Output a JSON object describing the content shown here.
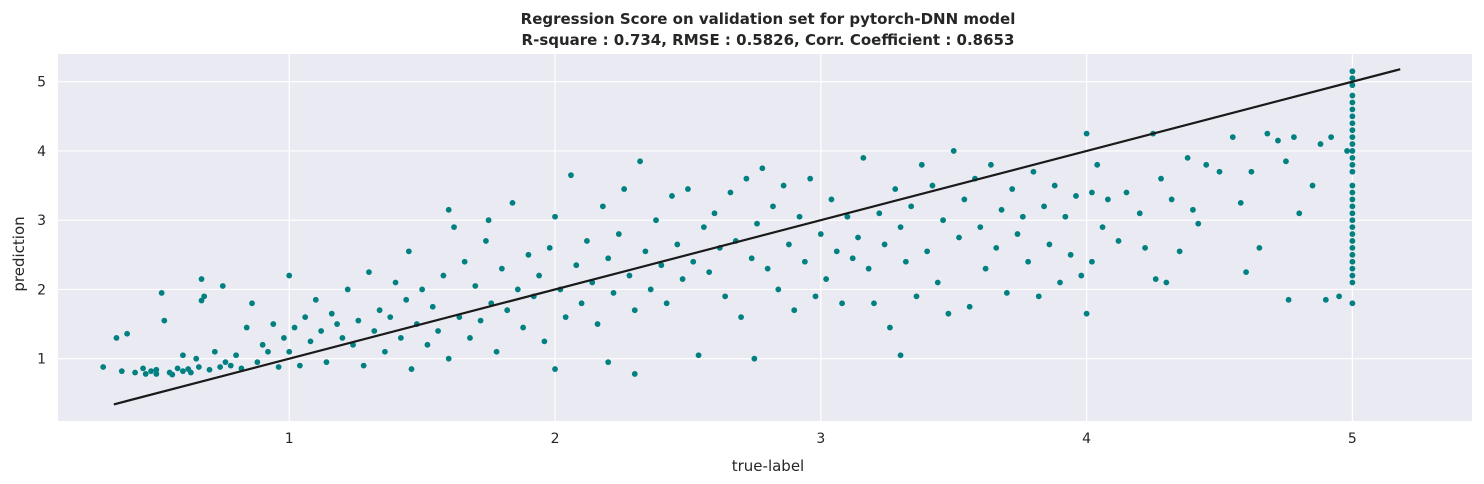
{
  "chart_data": {
    "type": "scatter",
    "title": "Regression Score on validation set for pytorch-DNN model",
    "subtitle": "R-square : 0.734,   RMSE : 0.5826,   Corr. Coefficient : 0.8653",
    "xlabel": "true-label",
    "ylabel": "prediction",
    "xlim": [
      0.13,
      5.45
    ],
    "ylim": [
      0.1,
      5.4
    ],
    "xticks": [
      "1",
      "2",
      "3",
      "4",
      "5"
    ],
    "yticks": [
      "1",
      "2",
      "3",
      "4",
      "5"
    ],
    "grid": true,
    "background_color": "#eaeaf2",
    "point_color": "#008080",
    "line_color": "#1a1a1a",
    "reference_line": {
      "x": [
        0.34,
        5.18
      ],
      "y": [
        0.34,
        5.18
      ]
    },
    "points": [
      [
        0.3,
        0.88
      ],
      [
        0.35,
        1.3
      ],
      [
        0.37,
        0.82
      ],
      [
        0.39,
        1.36
      ],
      [
        0.42,
        0.8
      ],
      [
        0.45,
        0.86
      ],
      [
        0.46,
        0.78
      ],
      [
        0.48,
        0.82
      ],
      [
        0.5,
        0.84
      ],
      [
        0.5,
        0.78
      ],
      [
        0.52,
        1.95
      ],
      [
        0.53,
        1.55
      ],
      [
        0.55,
        0.8
      ],
      [
        0.56,
        0.77
      ],
      [
        0.58,
        0.86
      ],
      [
        0.6,
        0.82
      ],
      [
        0.6,
        1.05
      ],
      [
        0.62,
        0.85
      ],
      [
        0.63,
        0.8
      ],
      [
        0.65,
        1.0
      ],
      [
        0.66,
        0.88
      ],
      [
        0.67,
        2.15
      ],
      [
        0.67,
        1.84
      ],
      [
        0.68,
        1.9
      ],
      [
        0.7,
        0.84
      ],
      [
        0.72,
        1.1
      ],
      [
        0.74,
        0.88
      ],
      [
        0.75,
        2.05
      ],
      [
        0.76,
        0.95
      ],
      [
        0.78,
        0.9
      ],
      [
        0.8,
        1.05
      ],
      [
        0.82,
        0.86
      ],
      [
        0.84,
        1.45
      ],
      [
        0.86,
        1.8
      ],
      [
        0.88,
        0.95
      ],
      [
        0.9,
        1.2
      ],
      [
        0.92,
        1.1
      ],
      [
        0.94,
        1.5
      ],
      [
        0.96,
        0.88
      ],
      [
        0.98,
        1.3
      ],
      [
        1.0,
        2.2
      ],
      [
        1.0,
        1.1
      ],
      [
        1.02,
        1.45
      ],
      [
        1.04,
        0.9
      ],
      [
        1.06,
        1.6
      ],
      [
        1.08,
        1.25
      ],
      [
        1.1,
        1.85
      ],
      [
        1.12,
        1.4
      ],
      [
        1.14,
        0.95
      ],
      [
        1.16,
        1.65
      ],
      [
        1.18,
        1.5
      ],
      [
        1.2,
        1.3
      ],
      [
        1.22,
        2.0
      ],
      [
        1.24,
        1.2
      ],
      [
        1.26,
        1.55
      ],
      [
        1.28,
        0.9
      ],
      [
        1.3,
        2.25
      ],
      [
        1.32,
        1.4
      ],
      [
        1.34,
        1.7
      ],
      [
        1.36,
        1.1
      ],
      [
        1.38,
        1.6
      ],
      [
        1.4,
        2.1
      ],
      [
        1.42,
        1.3
      ],
      [
        1.44,
        1.85
      ],
      [
        1.45,
        2.55
      ],
      [
        1.46,
        0.85
      ],
      [
        1.48,
        1.5
      ],
      [
        1.5,
        2.0
      ],
      [
        1.52,
        1.2
      ],
      [
        1.54,
        1.75
      ],
      [
        1.56,
        1.4
      ],
      [
        1.58,
        2.2
      ],
      [
        1.6,
        1.0
      ],
      [
        1.6,
        3.15
      ],
      [
        1.62,
        2.9
      ],
      [
        1.64,
        1.6
      ],
      [
        1.66,
        2.4
      ],
      [
        1.68,
        1.3
      ],
      [
        1.7,
        2.05
      ],
      [
        1.72,
        1.55
      ],
      [
        1.74,
        2.7
      ],
      [
        1.75,
        3.0
      ],
      [
        1.76,
        1.8
      ],
      [
        1.78,
        1.1
      ],
      [
        1.8,
        2.3
      ],
      [
        1.82,
        1.7
      ],
      [
        1.84,
        3.25
      ],
      [
        1.86,
        2.0
      ],
      [
        1.88,
        1.45
      ],
      [
        1.9,
        2.5
      ],
      [
        1.92,
        1.9
      ],
      [
        1.94,
        2.2
      ],
      [
        1.96,
        1.25
      ],
      [
        1.98,
        2.6
      ],
      [
        2.0,
        3.05
      ],
      [
        2.0,
        0.85
      ],
      [
        2.02,
        2.0
      ],
      [
        2.04,
        1.6
      ],
      [
        2.06,
        3.65
      ],
      [
        2.08,
        2.35
      ],
      [
        2.1,
        1.8
      ],
      [
        2.12,
        2.7
      ],
      [
        2.14,
        2.1
      ],
      [
        2.16,
        1.5
      ],
      [
        2.18,
        3.2
      ],
      [
        2.2,
        2.45
      ],
      [
        2.2,
        0.95
      ],
      [
        2.22,
        1.95
      ],
      [
        2.24,
        2.8
      ],
      [
        2.26,
        3.45
      ],
      [
        2.28,
        2.2
      ],
      [
        2.3,
        1.7
      ],
      [
        2.3,
        0.78
      ],
      [
        2.32,
        3.85
      ],
      [
        2.34,
        2.55
      ],
      [
        2.36,
        2.0
      ],
      [
        2.38,
        3.0
      ],
      [
        2.4,
        2.35
      ],
      [
        2.42,
        1.8
      ],
      [
        2.44,
        3.35
      ],
      [
        2.46,
        2.65
      ],
      [
        2.48,
        2.15
      ],
      [
        2.5,
        3.45
      ],
      [
        2.52,
        2.4
      ],
      [
        2.54,
        1.05
      ],
      [
        2.56,
        2.9
      ],
      [
        2.58,
        2.25
      ],
      [
        2.6,
        3.1
      ],
      [
        2.62,
        2.6
      ],
      [
        2.64,
        1.9
      ],
      [
        2.66,
        3.4
      ],
      [
        2.68,
        2.7
      ],
      [
        2.7,
        1.6
      ],
      [
        2.72,
        3.6
      ],
      [
        2.74,
        2.45
      ],
      [
        2.75,
        1.0
      ],
      [
        2.76,
        2.95
      ],
      [
        2.78,
        3.75
      ],
      [
        2.8,
        2.3
      ],
      [
        2.82,
        3.2
      ],
      [
        2.84,
        2.0
      ],
      [
        2.86,
        3.5
      ],
      [
        2.88,
        2.65
      ],
      [
        2.9,
        1.7
      ],
      [
        2.92,
        3.05
      ],
      [
        2.94,
        2.4
      ],
      [
        2.96,
        3.6
      ],
      [
        2.98,
        1.9
      ],
      [
        3.0,
        2.8
      ],
      [
        3.02,
        2.15
      ],
      [
        3.04,
        3.3
      ],
      [
        3.06,
        2.55
      ],
      [
        3.08,
        1.8
      ],
      [
        3.1,
        3.05
      ],
      [
        3.12,
        2.45
      ],
      [
        3.14,
        2.75
      ],
      [
        3.16,
        3.9
      ],
      [
        3.18,
        2.3
      ],
      [
        3.2,
        1.8
      ],
      [
        3.22,
        3.1
      ],
      [
        3.24,
        2.65
      ],
      [
        3.26,
        1.45
      ],
      [
        3.28,
        3.45
      ],
      [
        3.3,
        2.9
      ],
      [
        3.3,
        1.05
      ],
      [
        3.32,
        2.4
      ],
      [
        3.34,
        3.2
      ],
      [
        3.36,
        1.9
      ],
      [
        3.38,
        3.8
      ],
      [
        3.4,
        2.55
      ],
      [
        3.42,
        3.5
      ],
      [
        3.44,
        2.1
      ],
      [
        3.46,
        3.0
      ],
      [
        3.48,
        1.65
      ],
      [
        3.5,
        4.0
      ],
      [
        3.52,
        2.75
      ],
      [
        3.54,
        3.3
      ],
      [
        3.56,
        1.75
      ],
      [
        3.58,
        3.6
      ],
      [
        3.6,
        2.9
      ],
      [
        3.62,
        2.3
      ],
      [
        3.64,
        3.8
      ],
      [
        3.66,
        2.6
      ],
      [
        3.68,
        3.15
      ],
      [
        3.7,
        1.95
      ],
      [
        3.72,
        3.45
      ],
      [
        3.74,
        2.8
      ],
      [
        3.76,
        3.05
      ],
      [
        3.78,
        2.4
      ],
      [
        3.8,
        3.7
      ],
      [
        3.82,
        1.9
      ],
      [
        3.84,
        3.2
      ],
      [
        3.86,
        2.65
      ],
      [
        3.88,
        3.5
      ],
      [
        3.9,
        2.1
      ],
      [
        3.92,
        3.05
      ],
      [
        3.94,
        2.5
      ],
      [
        3.96,
        3.35
      ],
      [
        3.98,
        2.2
      ],
      [
        4.0,
        4.25
      ],
      [
        4.0,
        1.65
      ],
      [
        4.02,
        3.4
      ],
      [
        4.02,
        2.4
      ],
      [
        4.04,
        3.8
      ],
      [
        4.06,
        2.9
      ],
      [
        4.08,
        3.3
      ],
      [
        4.12,
        2.7
      ],
      [
        4.15,
        3.4
      ],
      [
        4.2,
        3.1
      ],
      [
        4.22,
        2.6
      ],
      [
        4.25,
        4.25
      ],
      [
        4.26,
        2.15
      ],
      [
        4.28,
        3.6
      ],
      [
        4.3,
        2.1
      ],
      [
        4.32,
        3.3
      ],
      [
        4.35,
        2.55
      ],
      [
        4.38,
        3.9
      ],
      [
        4.4,
        3.15
      ],
      [
        4.42,
        2.95
      ],
      [
        4.45,
        3.8
      ],
      [
        4.5,
        3.7
      ],
      [
        4.55,
        4.2
      ],
      [
        4.58,
        3.25
      ],
      [
        4.6,
        2.25
      ],
      [
        4.62,
        3.7
      ],
      [
        4.65,
        2.6
      ],
      [
        4.68,
        4.25
      ],
      [
        4.72,
        4.15
      ],
      [
        4.75,
        3.85
      ],
      [
        4.76,
        1.85
      ],
      [
        4.78,
        4.2
      ],
      [
        4.8,
        3.1
      ],
      [
        4.85,
        3.5
      ],
      [
        4.88,
        4.1
      ],
      [
        4.9,
        1.85
      ],
      [
        4.92,
        4.2
      ],
      [
        4.95,
        1.9
      ],
      [
        4.98,
        4.0
      ],
      [
        5.0,
        5.15
      ],
      [
        5.0,
        5.05
      ],
      [
        5.0,
        4.95
      ],
      [
        5.0,
        4.8
      ],
      [
        5.0,
        4.7
      ],
      [
        5.0,
        4.6
      ],
      [
        5.0,
        4.5
      ],
      [
        5.0,
        4.4
      ],
      [
        5.0,
        4.3
      ],
      [
        5.0,
        4.2
      ],
      [
        5.0,
        4.1
      ],
      [
        5.0,
        4.0
      ],
      [
        5.0,
        3.9
      ],
      [
        5.0,
        3.8
      ],
      [
        5.0,
        3.7
      ],
      [
        5.0,
        3.5
      ],
      [
        5.0,
        3.4
      ],
      [
        5.0,
        3.3
      ],
      [
        5.0,
        3.2
      ],
      [
        5.0,
        3.1
      ],
      [
        5.0,
        3.0
      ],
      [
        5.0,
        2.9
      ],
      [
        5.0,
        2.8
      ],
      [
        5.0,
        2.7
      ],
      [
        5.0,
        2.6
      ],
      [
        5.0,
        2.5
      ],
      [
        5.0,
        2.4
      ],
      [
        5.0,
        2.3
      ],
      [
        5.0,
        2.2
      ],
      [
        5.0,
        2.1
      ],
      [
        5.0,
        1.8
      ]
    ]
  }
}
